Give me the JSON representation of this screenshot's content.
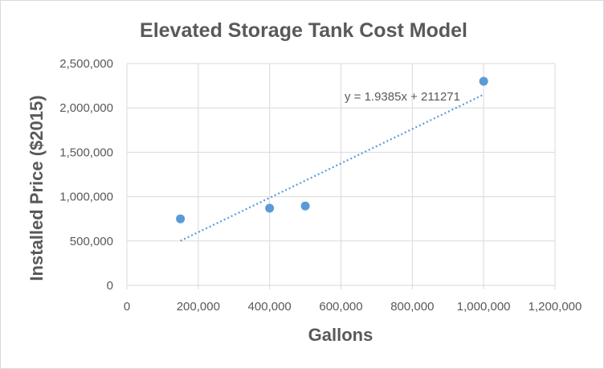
{
  "chart_data": {
    "type": "scatter",
    "title": "Elevated Storage Tank Cost Model",
    "xlabel": "Gallons",
    "ylabel": "Installed Price ($2015)",
    "xlim": [
      0,
      1200000
    ],
    "ylim": [
      0,
      2500000
    ],
    "x_ticks": [
      0,
      200000,
      400000,
      600000,
      800000,
      1000000,
      1200000
    ],
    "x_tick_labels": [
      "0",
      "200,000",
      "400,000",
      "600,000",
      "800,000",
      "1,000,000",
      "1,200,000"
    ],
    "y_ticks": [
      0,
      500000,
      1000000,
      1500000,
      2000000,
      2500000
    ],
    "y_tick_labels": [
      "0",
      "500,000",
      "1,000,000",
      "1,500,000",
      "2,000,000",
      "2,500,000"
    ],
    "grid": true,
    "points": [
      {
        "x": 150000,
        "y": 750000
      },
      {
        "x": 400000,
        "y": 870000
      },
      {
        "x": 500000,
        "y": 895000
      },
      {
        "x": 1000000,
        "y": 2300000
      }
    ],
    "trendline": {
      "type": "linear",
      "slope": 1.9385,
      "intercept": 211271,
      "x_range": [
        150000,
        1000000
      ],
      "equation_label": "y = 1.9385x + 211271"
    },
    "colors": {
      "marker": "#5b9bd5",
      "trendline": "#5b9bd5",
      "grid": "#d9d9d9",
      "text": "#595959"
    }
  }
}
